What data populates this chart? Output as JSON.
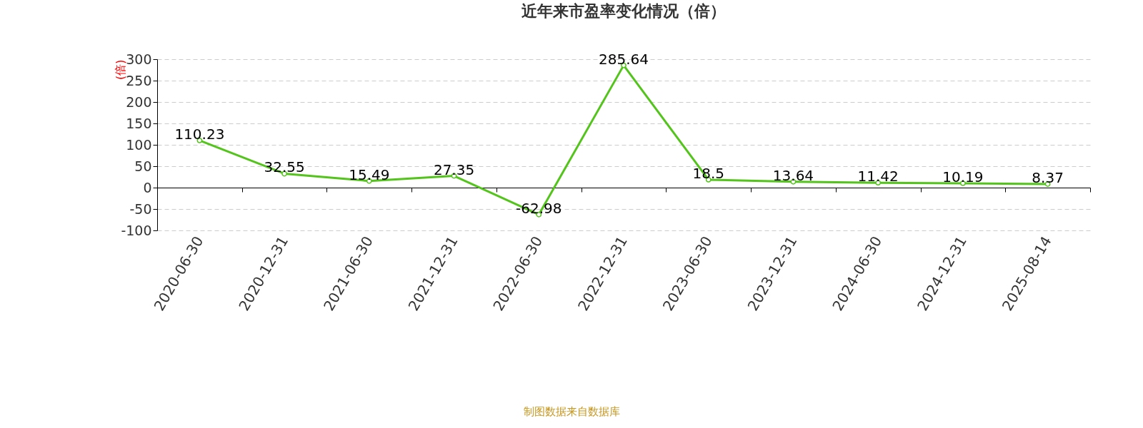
{
  "chart_data": {
    "type": "line",
    "title": "近年来市盈率变化情况（倍）",
    "ylabel": "(倍)",
    "categories": [
      "2020-06-30",
      "2020-12-31",
      "2021-06-30",
      "2021-12-31",
      "2022-06-30",
      "2022-12-31",
      "2023-06-30",
      "2023-12-31",
      "2024-06-30",
      "2024-12-31",
      "2025-08-14"
    ],
    "series": [
      {
        "color": "#52c41a",
        "values": [
          110.23,
          32.55,
          15.49,
          27.35,
          -62.98,
          285.64,
          18.5,
          13.64,
          11.42,
          10.19,
          8.37
        ]
      }
    ],
    "ylim": [
      -100,
      300
    ],
    "yticks": [
      -100,
      -50,
      0,
      50,
      100,
      150,
      200,
      250,
      300
    ],
    "grid": "y",
    "marker": "circle",
    "data_labels": true,
    "legend": false,
    "annotations": [
      "制图数据来自数据库"
    ]
  }
}
